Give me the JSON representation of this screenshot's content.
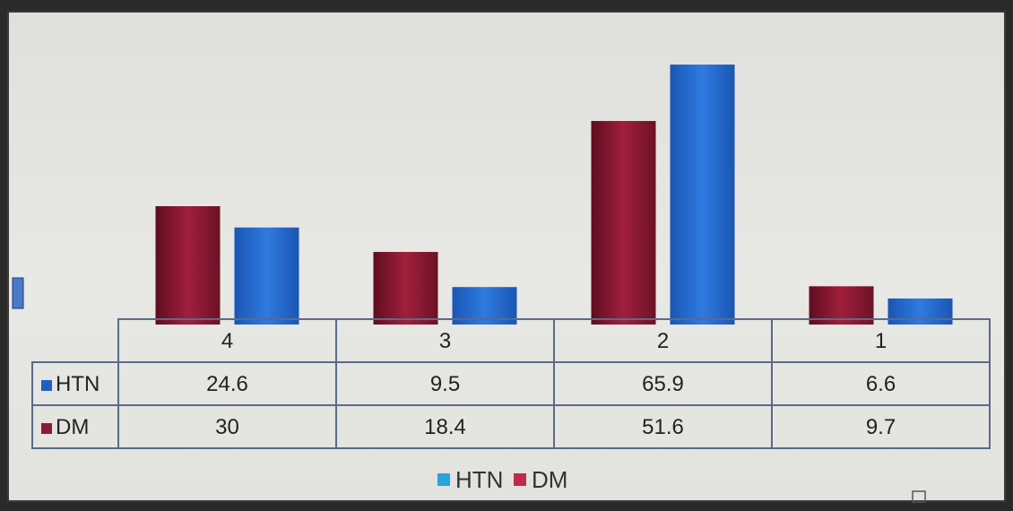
{
  "chart_data": {
    "type": "bar",
    "categories": [
      "4",
      "3",
      "2",
      "1"
    ],
    "series": [
      {
        "name": "DM",
        "values": [
          30,
          18.4,
          51.6,
          9.7
        ],
        "color": "#8e1a33"
      },
      {
        "name": "HTN",
        "values": [
          24.6,
          9.5,
          65.9,
          6.6
        ],
        "color": "#1f63c2"
      }
    ],
    "table_rows": [
      {
        "label": "HTN",
        "values": [
          "24.6",
          "9.5",
          "65.9",
          "6.6"
        ],
        "color": "#1f5fbf"
      },
      {
        "label": "DM",
        "values": [
          "30",
          "18.4",
          "51.6",
          "9.7"
        ],
        "color": "#8e1a33"
      }
    ],
    "legend": [
      {
        "name": "HTN",
        "color": "#2aa3dc"
      },
      {
        "name": "DM",
        "color": "#c02a50"
      }
    ],
    "legend_placement": "bottom-center",
    "ylim": [
      0,
      70
    ],
    "grid": false
  }
}
